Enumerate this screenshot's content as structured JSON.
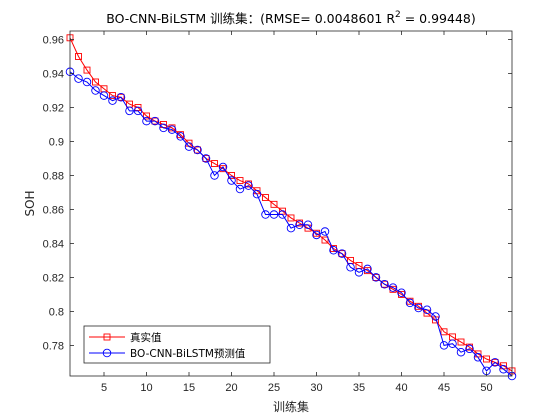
{
  "chart_data": {
    "type": "line",
    "title": "BO-CNN-BiLSTM 训练集：(RMSE= 0.0048601 R",
    "title_superscript": "2",
    "title_suffix": "  = 0.99448)",
    "xlabel": "训练集",
    "ylabel": "SOH",
    "xlim": [
      1,
      53
    ],
    "ylim": [
      0.762,
      0.965
    ],
    "xticks": [
      5,
      10,
      15,
      20,
      25,
      30,
      35,
      40,
      45,
      50
    ],
    "yticks": [
      0.78,
      0.8,
      0.82,
      0.84,
      0.86,
      0.88,
      0.9,
      0.92,
      0.94,
      0.96
    ],
    "grid": false,
    "legend_position": "bottom-left",
    "x": [
      1,
      2,
      3,
      4,
      5,
      6,
      7,
      8,
      9,
      10,
      11,
      12,
      13,
      14,
      15,
      16,
      17,
      18,
      19,
      20,
      21,
      22,
      23,
      24,
      25,
      26,
      27,
      28,
      29,
      30,
      31,
      32,
      33,
      34,
      35,
      36,
      37,
      38,
      39,
      40,
      41,
      42,
      43,
      44,
      45,
      46,
      47,
      48,
      49,
      50,
      51,
      52,
      53
    ],
    "series": [
      {
        "name": "真实值",
        "color": "#ff0000",
        "marker": "square",
        "values": [
          0.961,
          0.95,
          0.942,
          0.935,
          0.931,
          0.927,
          0.926,
          0.922,
          0.92,
          0.915,
          0.912,
          0.91,
          0.908,
          0.904,
          0.899,
          0.895,
          0.89,
          0.887,
          0.884,
          0.88,
          0.877,
          0.875,
          0.871,
          0.867,
          0.863,
          0.859,
          0.855,
          0.852,
          0.849,
          0.846,
          0.842,
          0.837,
          0.834,
          0.83,
          0.827,
          0.824,
          0.82,
          0.816,
          0.813,
          0.81,
          0.806,
          0.803,
          0.799,
          0.795,
          0.788,
          0.785,
          0.782,
          0.779,
          0.775,
          0.772,
          0.77,
          0.768,
          0.765
        ]
      },
      {
        "name": "BO-CNN-BiLSTM预测值",
        "color": "#0000ff",
        "marker": "circle",
        "values": [
          0.941,
          0.937,
          0.935,
          0.93,
          0.927,
          0.924,
          0.926,
          0.918,
          0.918,
          0.912,
          0.912,
          0.908,
          0.907,
          0.903,
          0.897,
          0.895,
          0.89,
          0.88,
          0.885,
          0.877,
          0.872,
          0.874,
          0.869,
          0.857,
          0.857,
          0.857,
          0.849,
          0.851,
          0.851,
          0.845,
          0.847,
          0.836,
          0.834,
          0.826,
          0.823,
          0.825,
          0.82,
          0.816,
          0.814,
          0.811,
          0.805,
          0.802,
          0.801,
          0.797,
          0.78,
          0.781,
          0.776,
          0.778,
          0.773,
          0.765,
          0.77,
          0.766,
          0.762
        ]
      }
    ]
  }
}
